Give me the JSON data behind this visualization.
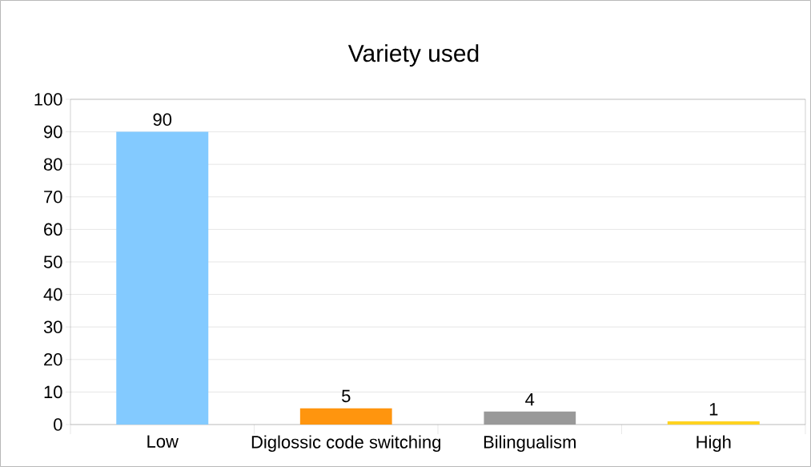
{
  "chart_data": {
    "type": "bar",
    "title": "Variety used",
    "categories": [
      "Low",
      "Diglossic code switching",
      "Bilingualism",
      "High"
    ],
    "values": [
      90,
      5,
      4,
      1
    ],
    "colors": [
      "#83caff",
      "#ff950e",
      "#999999",
      "#ffd320"
    ],
    "ylim": [
      0,
      100
    ],
    "yticks": [
      0,
      10,
      20,
      30,
      40,
      50,
      60,
      70,
      80,
      90,
      100
    ],
    "grid": "y",
    "data_labels": true
  }
}
